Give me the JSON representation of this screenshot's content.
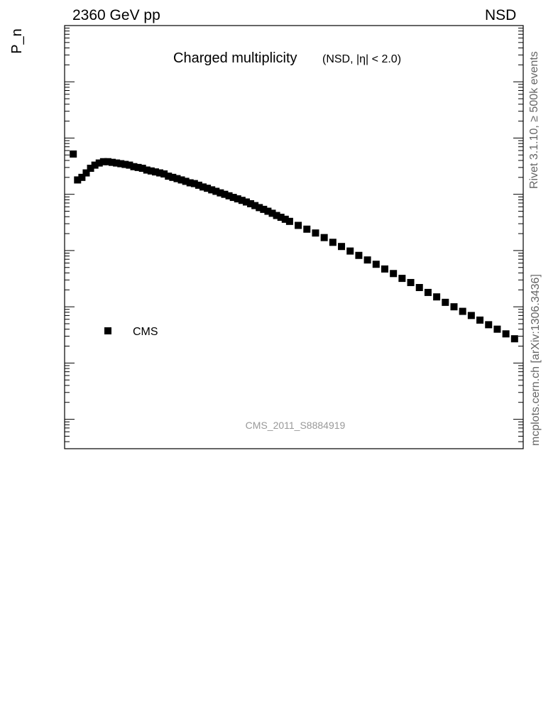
{
  "header": {
    "energy_label": "2360 GeV pp",
    "process_label": "NSD"
  },
  "side_labels": {
    "rivet": "Rivet 3.1.10, ≥ 500k events",
    "mcplots": "mcplots.cern.ch [arXiv:1306.3436]"
  },
  "chart_data": [
    {
      "type": "scatter",
      "panel": "main",
      "title": "Charged multiplicity",
      "subtitle": "(NSD, |η| < 2.0)",
      "ylabel": "P_n",
      "yscale": "log",
      "ylim": [
        3e-07,
        10
      ],
      "xlim": [
        -2,
        104
      ],
      "watermark": "CMS_2011_S8884919",
      "legend_position": "lower-left",
      "series": [
        {
          "name": "CMS",
          "color": "#000000",
          "marker": "square",
          "x": [
            0,
            1,
            2,
            3,
            4,
            5,
            6,
            7,
            8,
            9,
            10,
            11,
            12,
            13,
            14,
            15,
            16,
            17,
            18,
            19,
            20,
            21,
            22,
            23,
            24,
            25,
            26,
            27,
            28,
            29,
            30,
            31,
            32,
            33,
            34,
            35,
            36,
            37,
            38,
            39,
            40,
            41,
            42,
            43,
            44,
            45,
            46,
            47,
            48,
            49,
            50,
            52,
            54,
            56,
            58,
            60,
            62,
            64,
            66,
            68,
            70,
            72,
            74,
            76,
            78,
            80,
            82,
            84,
            86,
            88,
            90,
            92,
            94,
            96,
            98,
            100,
            102
          ],
          "y": [
            0.052,
            0.018,
            0.02,
            0.024,
            0.029,
            0.033,
            0.036,
            0.038,
            0.038,
            0.037,
            0.036,
            0.035,
            0.034,
            0.033,
            0.031,
            0.03,
            0.029,
            0.027,
            0.026,
            0.025,
            0.024,
            0.023,
            0.021,
            0.02,
            0.019,
            0.018,
            0.017,
            0.016,
            0.0155,
            0.0145,
            0.0135,
            0.0128,
            0.012,
            0.0113,
            0.0106,
            0.01,
            0.0094,
            0.0088,
            0.0083,
            0.0078,
            0.0073,
            0.0068,
            0.0063,
            0.0058,
            0.0054,
            0.005,
            0.0046,
            0.0042,
            0.0039,
            0.0036,
            0.0033,
            0.0028,
            0.0024,
            0.00205,
            0.0017,
            0.0014,
            0.00118,
            0.00098,
            0.00082,
            0.00068,
            0.00057,
            0.00047,
            0.00039,
            0.00032,
            0.00027,
            0.00022,
            0.00018,
            0.00015,
            0.00012,
            0.0001,
            8.3e-05,
            7e-05,
            5.8e-05,
            4.8e-05,
            4e-05,
            3.3e-05,
            2.7e-05
          ]
        }
      ]
    }
  ]
}
